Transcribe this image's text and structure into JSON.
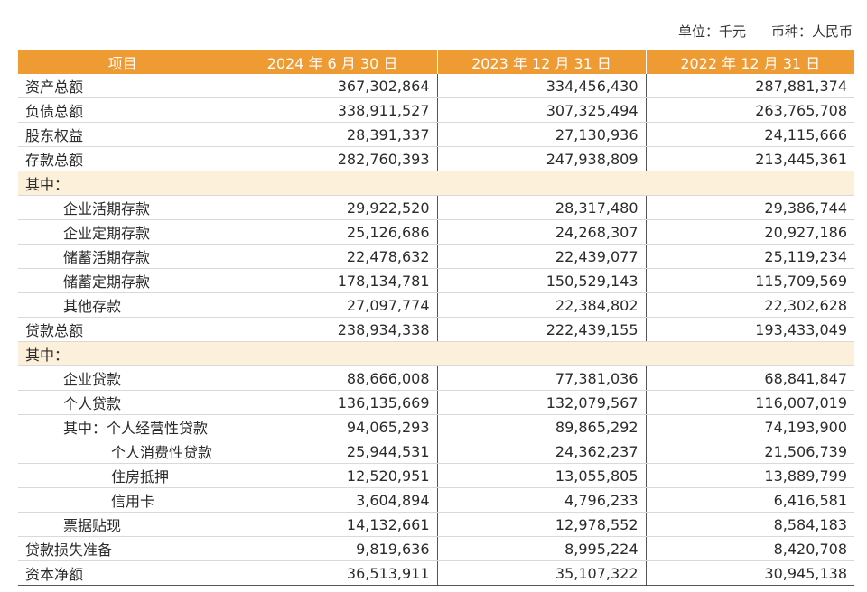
{
  "unit": {
    "label": "单位：千元",
    "currency": "币种：人民币"
  },
  "header": [
    "项目",
    "2024 年 6 月 30 日",
    "2023 年 12 月 31 日",
    "2022 年 12 月 31 日"
  ],
  "rows": [
    {
      "label": "资产总额",
      "indent": 0,
      "values": [
        "367,302,864",
        "334,456,430",
        "287,881,374"
      ]
    },
    {
      "label": "负债总额",
      "indent": 0,
      "values": [
        "338,911,527",
        "307,325,494",
        "263,765,708"
      ]
    },
    {
      "label": "股东权益",
      "indent": 0,
      "values": [
        "28,391,337",
        "27,130,936",
        "24,115,666"
      ]
    },
    {
      "label": "存款总额",
      "indent": 0,
      "values": [
        "282,760,393",
        "247,938,809",
        "213,445,361"
      ]
    },
    {
      "label": "其中：",
      "section": true
    },
    {
      "label": "企业活期存款",
      "indent": 1,
      "values": [
        "29,922,520",
        "28,317,480",
        "29,386,744"
      ]
    },
    {
      "label": "企业定期存款",
      "indent": 1,
      "values": [
        "25,126,686",
        "24,268,307",
        "20,927,186"
      ]
    },
    {
      "label": "储蓄活期存款",
      "indent": 1,
      "values": [
        "22,478,632",
        "22,439,077",
        "25,119,234"
      ]
    },
    {
      "label": "储蓄定期存款",
      "indent": 1,
      "values": [
        "178,134,781",
        "150,529,143",
        "115,709,569"
      ]
    },
    {
      "label": "其他存款",
      "indent": 1,
      "values": [
        "27,097,774",
        "22,384,802",
        "22,302,628"
      ]
    },
    {
      "label": "贷款总额",
      "indent": 0,
      "values": [
        "238,934,338",
        "222,439,155",
        "193,433,049"
      ]
    },
    {
      "label": "其中：",
      "section": true
    },
    {
      "label": "企业贷款",
      "indent": 1,
      "values": [
        "88,666,008",
        "77,381,036",
        "68,841,847"
      ]
    },
    {
      "label": "个人贷款",
      "indent": 1,
      "values": [
        "136,135,669",
        "132,079,567",
        "116,007,019"
      ]
    },
    {
      "label": "其中：个人经营性贷款",
      "indent": 1,
      "values": [
        "94,065,293",
        "89,865,292",
        "74,193,900"
      ]
    },
    {
      "label": "个人消费性贷款",
      "indent": 2,
      "values": [
        "25,944,531",
        "24,362,237",
        "21,506,739"
      ]
    },
    {
      "label": "住房抵押",
      "indent": 2,
      "values": [
        "12,520,951",
        "13,055,805",
        "13,889,799"
      ]
    },
    {
      "label": "信用卡",
      "indent": 2,
      "values": [
        "3,604,894",
        "4,796,233",
        "6,416,581"
      ]
    },
    {
      "label": "票据贴现",
      "indent": 1,
      "values": [
        "14,132,661",
        "12,978,552",
        "8,584,183"
      ]
    },
    {
      "label": "贷款损失准备",
      "indent": 0,
      "values": [
        "9,819,636",
        "8,995,224",
        "8,420,708"
      ]
    },
    {
      "label": "资本净额",
      "indent": 0,
      "values": [
        "36,513,911",
        "35,107,322",
        "30,945,138"
      ]
    }
  ]
}
